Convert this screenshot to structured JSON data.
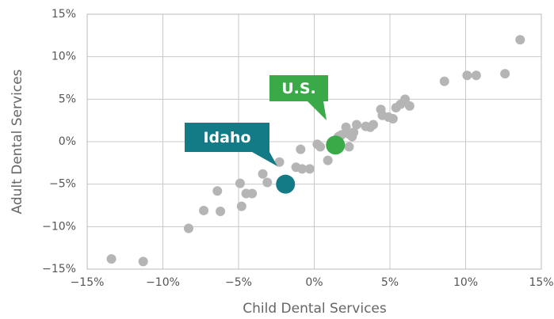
{
  "chart_data": {
    "type": "scatter",
    "xlabel": "Child Dental Services",
    "ylabel": "Adult Dental Services",
    "xlim": [
      -15,
      15
    ],
    "ylim": [
      -15,
      15
    ],
    "xticks": [
      {
        "value": -15,
        "label": "−15%"
      },
      {
        "value": -10,
        "label": "−10%"
      },
      {
        "value": -5,
        "label": "−5%"
      },
      {
        "value": 0,
        "label": "0%"
      },
      {
        "value": 5,
        "label": "5%"
      },
      {
        "value": 10,
        "label": "10%"
      },
      {
        "value": 15,
        "label": "15%"
      }
    ],
    "yticks": [
      {
        "value": -15,
        "label": "−15%"
      },
      {
        "value": -10,
        "label": "−10%"
      },
      {
        "value": -5,
        "label": "−5%"
      },
      {
        "value": 0,
        "label": "0%"
      },
      {
        "value": 5,
        "label": "5%"
      },
      {
        "value": 10,
        "label": "10%"
      },
      {
        "value": 15,
        "label": "15%"
      }
    ],
    "grid": true,
    "series": [
      {
        "color": "#b5b5b5",
        "x": [
          -13.4,
          -11.3,
          -8.3,
          -7.3,
          -6.4,
          -6.2,
          -4.9,
          -4.8,
          -4.5,
          -4.1,
          -3.4,
          -3.1,
          -2.3,
          -1.2,
          -0.9,
          -0.8,
          -0.3,
          0.2,
          0.4,
          0.9,
          1.6,
          1.8,
          2.1,
          2.3,
          2.5,
          2.3,
          2.6,
          2.8,
          3.4,
          3.7,
          3.9,
          4.4,
          4.5,
          4.9,
          5.2,
          5.4,
          5.7,
          6.0,
          6.3,
          8.6,
          10.1,
          10.7,
          12.6,
          13.6
        ],
        "values": [
          -13.8,
          -14.1,
          -10.2,
          -8.1,
          -5.8,
          -8.2,
          -4.9,
          -7.6,
          -6.1,
          -6.1,
          -3.8,
          -4.8,
          -2.4,
          -3.0,
          -0.9,
          -3.2,
          -3.2,
          -0.3,
          -0.6,
          -2.2,
          0.6,
          0.8,
          1.7,
          0.9,
          0.6,
          -0.6,
          1.1,
          2.0,
          1.8,
          1.7,
          2.0,
          3.8,
          3.1,
          2.9,
          2.7,
          4.0,
          4.4,
          5.0,
          4.2,
          7.1,
          7.8,
          7.8,
          8.0,
          12.0
        ]
      },
      {
        "name": "Idaho",
        "color": "#137b85",
        "x": [
          -1.9
        ],
        "values": [
          -5.0
        ]
      },
      {
        "name": "U.S.",
        "color": "#3aaa49",
        "x": [
          1.4
        ],
        "values": [
          -0.4
        ]
      }
    ]
  }
}
